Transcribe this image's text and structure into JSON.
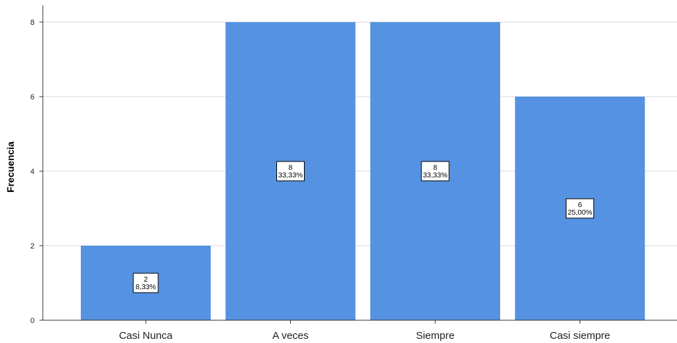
{
  "chart_data": {
    "type": "bar",
    "categories": [
      "Casi Nunca",
      "A veces",
      "Siempre",
      "Casi siempre"
    ],
    "values": [
      2,
      8,
      8,
      6
    ],
    "data_labels": [
      {
        "count": "2",
        "percent": "8,33%"
      },
      {
        "count": "8",
        "percent": "33,33%"
      },
      {
        "count": "8",
        "percent": "33,33%"
      },
      {
        "count": "6",
        "percent": "25,00%"
      }
    ],
    "title": "",
    "xlabel": "",
    "ylabel": "Frecuencia",
    "ylim": [
      0,
      8
    ],
    "yticks": [
      "0",
      "2",
      "4",
      "6",
      "8"
    ],
    "grid": true,
    "colors": {
      "bar": "#5592E1",
      "grid": "#D9D9D9",
      "axis": "#333333"
    }
  }
}
